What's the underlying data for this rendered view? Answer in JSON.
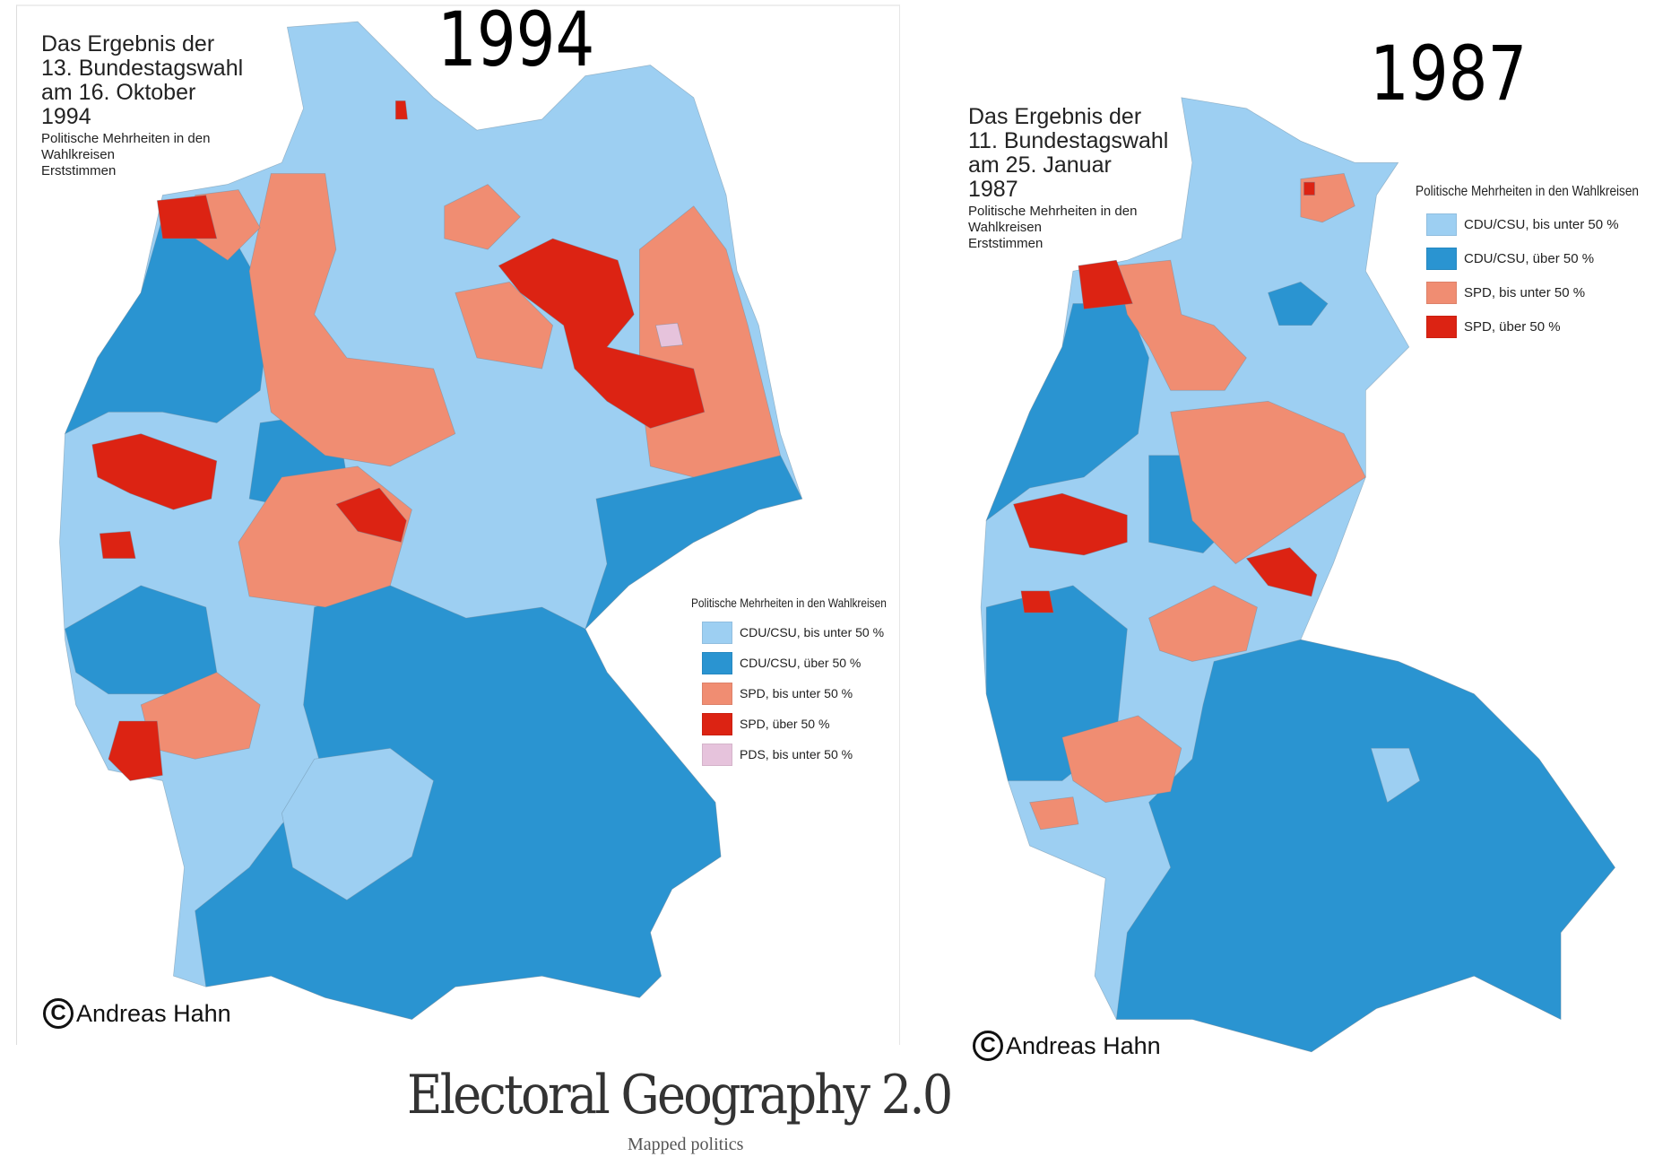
{
  "colors": {
    "cdu_under50": "#9dcff2",
    "cdu_over50": "#2a94d1",
    "spd_under50": "#f08d72",
    "spd_over50": "#dc2313",
    "pds_under50": "#e6c3dc"
  },
  "map_1994": {
    "year_label": "1994",
    "title_lines": [
      "Das Ergebnis der",
      "13. Bundestagswahl",
      "am 16. Oktober",
      "1994"
    ],
    "subtitle_lines": [
      "Politische Mehrheiten in den",
      "Wahlkreisen",
      "Erststimmen"
    ],
    "legend_heading": "Politische Mehrheiten in den Wahlkreisen",
    "legend": [
      {
        "label": "CDU/CSU, bis unter 50 %",
        "color": "#9dcff2"
      },
      {
        "label": "CDU/CSU, über 50 %",
        "color": "#2a94d1"
      },
      {
        "label": "SPD, bis unter 50 %",
        "color": "#f08d72"
      },
      {
        "label": "SPD, über 50 %",
        "color": "#dc2313"
      },
      {
        "label": "PDS, bis unter 50 %",
        "color": "#e6c3dc"
      }
    ],
    "copyright": "Andreas Hahn"
  },
  "map_1987": {
    "year_label": "1987",
    "title_lines": [
      "Das Ergebnis der",
      "11. Bundestagswahl",
      "am 25. Januar",
      "1987"
    ],
    "subtitle_lines": [
      "Politische Mehrheiten in den",
      "Wahlkreisen",
      "Erststimmen"
    ],
    "legend_heading": "Politische Mehrheiten in den Wahlkreisen",
    "legend": [
      {
        "label": "CDU/CSU, bis unter 50 %",
        "color": "#9dcff2"
      },
      {
        "label": "CDU/CSU, über 50 %",
        "color": "#2a94d1"
      },
      {
        "label": "SPD, bis unter 50 %",
        "color": "#f08d72"
      },
      {
        "label": "SPD, über 50 %",
        "color": "#dc2313"
      }
    ],
    "copyright": "Andreas Hahn"
  },
  "site": {
    "title": "Electoral Geography 2.0",
    "subtitle": "Mapped politics"
  }
}
